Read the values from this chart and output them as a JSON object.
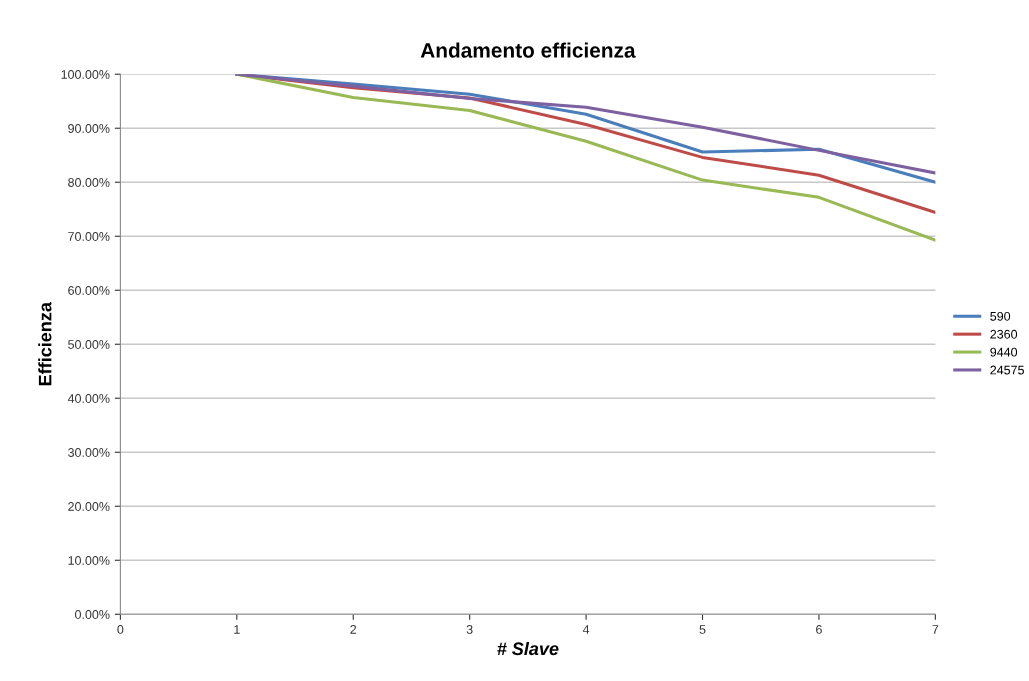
{
  "chart_data": {
    "type": "line",
    "title": "Andamento efficienza",
    "xlabel": "# Slave",
    "ylabel": "Efficienza",
    "x": [
      1,
      2,
      3,
      4,
      5,
      6,
      7
    ],
    "series": [
      {
        "name": "590",
        "color": "#4a7ebb",
        "values": [
          100,
          98.2,
          96.3,
          92.6,
          85.6,
          86.1,
          80.0
        ]
      },
      {
        "name": "2360",
        "color": "#be4b48",
        "values": [
          100,
          97.5,
          95.6,
          90.7,
          84.6,
          81.3,
          74.4
        ]
      },
      {
        "name": "9440",
        "color": "#98b954",
        "values": [
          100,
          95.7,
          93.3,
          87.6,
          80.4,
          77.2,
          69.3
        ]
      },
      {
        "name": "24575",
        "color": "#7d60a0",
        "values": [
          100,
          97.8,
          95.5,
          93.9,
          90.2,
          85.9,
          81.7
        ]
      }
    ],
    "xlim": [
      0,
      7
    ],
    "xticks": [
      0,
      1,
      2,
      3,
      4,
      5,
      6,
      7
    ],
    "ylim": [
      0,
      100
    ],
    "yticks": [
      {
        "value": 0,
        "label": "0.00%"
      },
      {
        "value": 10,
        "label": "10.00%"
      },
      {
        "value": 20,
        "label": "20.00%"
      },
      {
        "value": 30,
        "label": "30.00%"
      },
      {
        "value": 40,
        "label": "40.00%"
      },
      {
        "value": 50,
        "label": "50.00%"
      },
      {
        "value": 60,
        "label": "60.00%"
      },
      {
        "value": 70,
        "label": "70.00%"
      },
      {
        "value": 80,
        "label": "80.00%"
      },
      {
        "value": 90,
        "label": "90.00%"
      },
      {
        "value": 100,
        "label": "100.00%"
      }
    ],
    "grid": "y",
    "legend": "right",
    "marker": "none",
    "line_style": "solid"
  }
}
